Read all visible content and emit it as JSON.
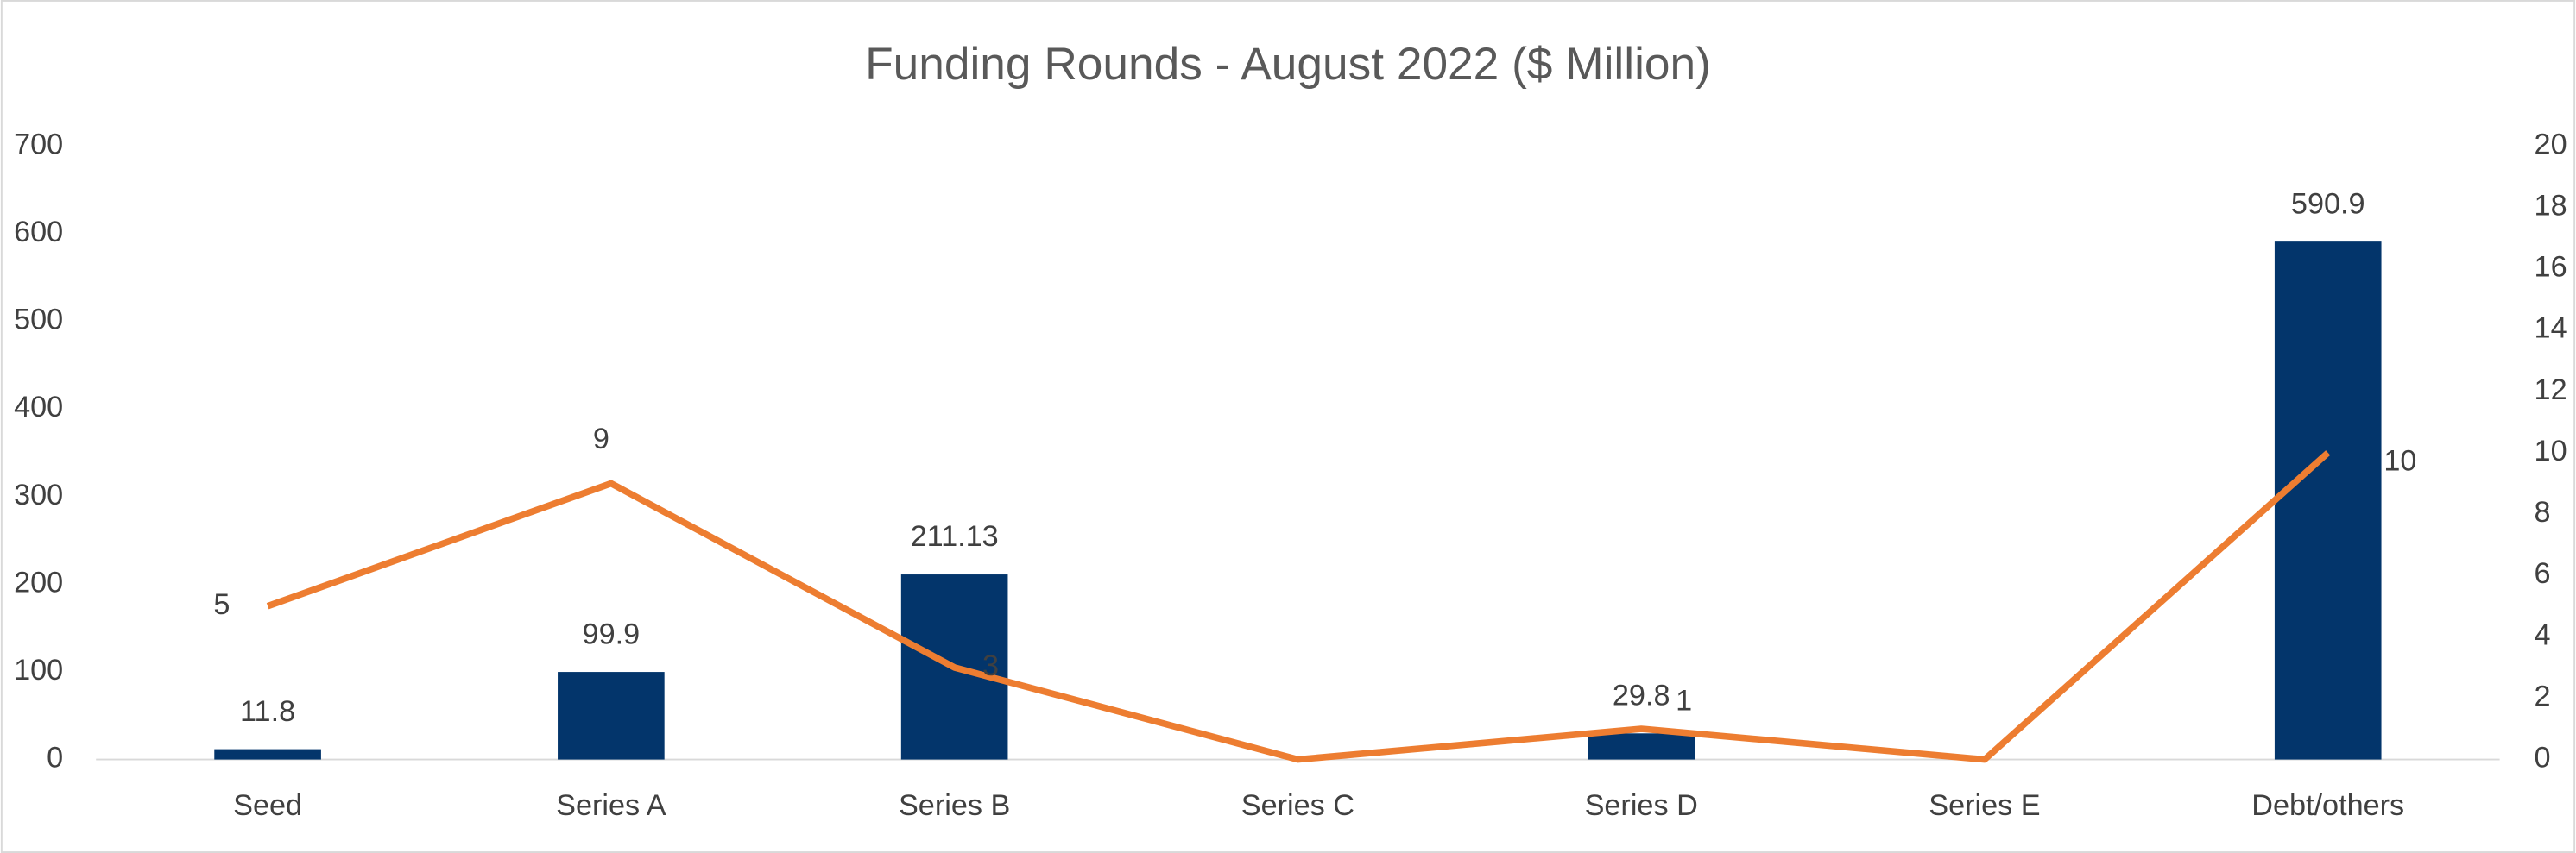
{
  "chart_data": {
    "type": "bar-line",
    "title": "Funding Rounds - August 2022 ($ Million)",
    "categories": [
      "Seed",
      "Series A",
      "Series B",
      "Series C",
      "Series D",
      "Series E",
      "Debt/others"
    ],
    "series": [
      {
        "type": "bar",
        "color": "#03356b",
        "values": [
          11.8,
          99.9,
          211.13,
          null,
          29.8,
          null,
          590.9
        ]
      },
      {
        "type": "line",
        "axis": "y2",
        "color": "#ed7d31",
        "values": [
          5,
          9,
          3,
          0,
          1,
          0,
          10
        ]
      }
    ],
    "ylim": [
      0,
      700
    ],
    "yticks": [
      0,
      100,
      200,
      300,
      400,
      500,
      600,
      700
    ],
    "y2lim": [
      0,
      20
    ],
    "y2ticks": [
      0,
      2,
      4,
      6,
      8,
      10,
      12,
      14,
      16,
      18,
      20
    ],
    "grid": false
  }
}
